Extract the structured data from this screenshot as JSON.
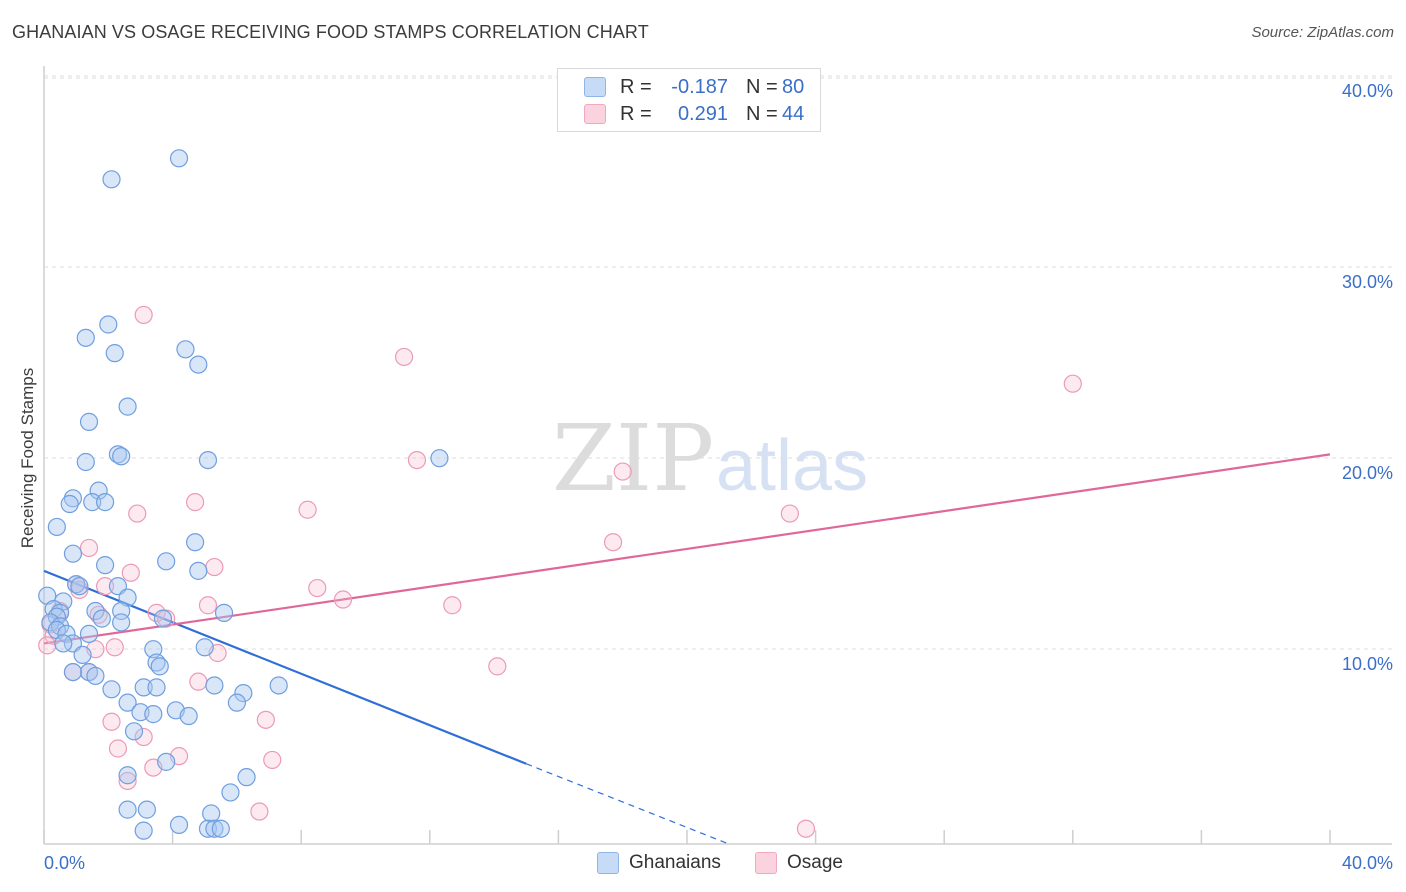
{
  "header": {
    "title": "GHANAIAN VS OSAGE RECEIVING FOOD STAMPS CORRELATION CHART",
    "source": "Source: ZipAtlas.com"
  },
  "watermark": {
    "zip": "ZIP",
    "atlas": "atlas"
  },
  "legend": {
    "rows": [
      {
        "r_label": "R =",
        "r_value": "-0.187",
        "n_label": "N =",
        "n_value": "80",
        "color": "#a8c8f0"
      },
      {
        "r_label": "R =",
        "r_value": "0.291",
        "n_label": "N =",
        "n_value": "44",
        "color": "#f6b8cc"
      }
    ]
  },
  "bottom_legend": {
    "ghanaians": "Ghanaians",
    "osage": "Osage"
  },
  "chart_data": {
    "type": "scatter",
    "title": "GHANAIAN VS OSAGE RECEIVING FOOD STAMPS CORRELATION CHART",
    "xlabel": "",
    "ylabel": "Receiving Food Stamps",
    "xlim": [
      0,
      40
    ],
    "ylim": [
      0,
      40
    ],
    "x_tick_labels": [
      "0.0%",
      "40.0%"
    ],
    "y_ticks": [
      10,
      20,
      30,
      40
    ],
    "y_tick_labels": [
      "10.0%",
      "20.0%",
      "30.0%",
      "40.0%"
    ],
    "colors": {
      "ghanaians": "#4a86e8",
      "osage": "#e86a9a",
      "ghanaians_line": "#2f6fd6",
      "osage_line": "#e0679a"
    },
    "series": [
      {
        "name": "Ghanaians",
        "trend": {
          "x0": 0,
          "y0": 14.3,
          "x1": 15,
          "y1": 4.2,
          "dash_to_x": 21.3,
          "dash_to_y": 0
        },
        "points": [
          [
            4.2,
            35.9
          ],
          [
            2.1,
            34.8
          ],
          [
            2.0,
            27.2
          ],
          [
            1.3,
            26.5
          ],
          [
            2.2,
            25.7
          ],
          [
            4.4,
            25.9
          ],
          [
            4.8,
            25.1
          ],
          [
            2.6,
            22.9
          ],
          [
            1.4,
            22.1
          ],
          [
            2.3,
            20.4
          ],
          [
            2.4,
            20.3
          ],
          [
            1.3,
            20.0
          ],
          [
            5.1,
            20.1
          ],
          [
            12.3,
            20.2
          ],
          [
            0.9,
            18.1
          ],
          [
            1.7,
            18.5
          ],
          [
            0.8,
            17.8
          ],
          [
            1.5,
            17.9
          ],
          [
            1.9,
            17.9
          ],
          [
            0.4,
            16.6
          ],
          [
            4.7,
            15.8
          ],
          [
            0.9,
            15.2
          ],
          [
            3.8,
            14.8
          ],
          [
            1.9,
            14.6
          ],
          [
            4.8,
            14.3
          ],
          [
            1.0,
            13.6
          ],
          [
            1.1,
            13.5
          ],
          [
            2.3,
            13.5
          ],
          [
            0.1,
            13.0
          ],
          [
            0.6,
            12.7
          ],
          [
            2.6,
            12.9
          ],
          [
            0.3,
            12.3
          ],
          [
            0.5,
            12.1
          ],
          [
            0.4,
            11.9
          ],
          [
            1.6,
            12.2
          ],
          [
            2.4,
            12.2
          ],
          [
            5.6,
            12.1
          ],
          [
            1.8,
            11.8
          ],
          [
            2.4,
            11.6
          ],
          [
            3.7,
            11.8
          ],
          [
            0.2,
            11.6
          ],
          [
            0.5,
            11.4
          ],
          [
            0.4,
            11.2
          ],
          [
            0.7,
            11.0
          ],
          [
            1.4,
            11.0
          ],
          [
            0.9,
            10.5
          ],
          [
            0.6,
            10.5
          ],
          [
            3.4,
            10.2
          ],
          [
            5.0,
            10.3
          ],
          [
            1.2,
            9.9
          ],
          [
            3.5,
            9.5
          ],
          [
            3.6,
            9.3
          ],
          [
            1.4,
            9.0
          ],
          [
            0.9,
            9.0
          ],
          [
            1.6,
            8.8
          ],
          [
            2.1,
            8.1
          ],
          [
            3.1,
            8.2
          ],
          [
            3.5,
            8.2
          ],
          [
            5.3,
            8.3
          ],
          [
            7.3,
            8.3
          ],
          [
            6.2,
            7.9
          ],
          [
            2.6,
            7.4
          ],
          [
            6.0,
            7.4
          ],
          [
            3.0,
            6.9
          ],
          [
            3.4,
            6.8
          ],
          [
            4.1,
            7.0
          ],
          [
            4.5,
            6.7
          ],
          [
            2.8,
            5.9
          ],
          [
            3.8,
            4.3
          ],
          [
            2.6,
            3.6
          ],
          [
            6.3,
            3.5
          ],
          [
            5.8,
            2.7
          ],
          [
            2.6,
            1.8
          ],
          [
            3.2,
            1.8
          ],
          [
            5.2,
            1.6
          ],
          [
            4.2,
            1.0
          ],
          [
            3.1,
            0.7
          ],
          [
            5.1,
            0.8
          ],
          [
            5.3,
            0.8
          ],
          [
            5.5,
            0.8
          ]
        ]
      },
      {
        "name": "Osage",
        "trend": {
          "x0": 0,
          "y0": 10.5,
          "x1": 40,
          "y1": 20.4
        },
        "points": [
          [
            3.1,
            27.7
          ],
          [
            11.2,
            25.5
          ],
          [
            32.0,
            24.1
          ],
          [
            11.6,
            20.1
          ],
          [
            18.0,
            19.5
          ],
          [
            4.7,
            17.9
          ],
          [
            8.2,
            17.5
          ],
          [
            2.9,
            17.3
          ],
          [
            23.2,
            17.3
          ],
          [
            1.4,
            15.5
          ],
          [
            17.7,
            15.8
          ],
          [
            5.3,
            14.5
          ],
          [
            2.7,
            14.2
          ],
          [
            1.0,
            13.6
          ],
          [
            1.9,
            13.5
          ],
          [
            8.5,
            13.4
          ],
          [
            1.1,
            13.3
          ],
          [
            9.3,
            12.8
          ],
          [
            5.1,
            12.5
          ],
          [
            12.7,
            12.5
          ],
          [
            0.5,
            12.2
          ],
          [
            3.5,
            12.1
          ],
          [
            1.7,
            12.0
          ],
          [
            0.2,
            11.5
          ],
          [
            3.8,
            11.8
          ],
          [
            0.3,
            10.9
          ],
          [
            0.1,
            10.4
          ],
          [
            2.2,
            10.3
          ],
          [
            1.6,
            10.2
          ],
          [
            5.4,
            10.0
          ],
          [
            0.9,
            9.0
          ],
          [
            1.4,
            9.0
          ],
          [
            14.1,
            9.3
          ],
          [
            4.8,
            8.5
          ],
          [
            2.1,
            6.4
          ],
          [
            6.9,
            6.5
          ],
          [
            3.1,
            5.6
          ],
          [
            2.3,
            5.0
          ],
          [
            4.2,
            4.6
          ],
          [
            7.1,
            4.4
          ],
          [
            3.4,
            4.0
          ],
          [
            2.6,
            3.3
          ],
          [
            6.7,
            1.7
          ],
          [
            23.7,
            0.8
          ]
        ]
      }
    ]
  }
}
